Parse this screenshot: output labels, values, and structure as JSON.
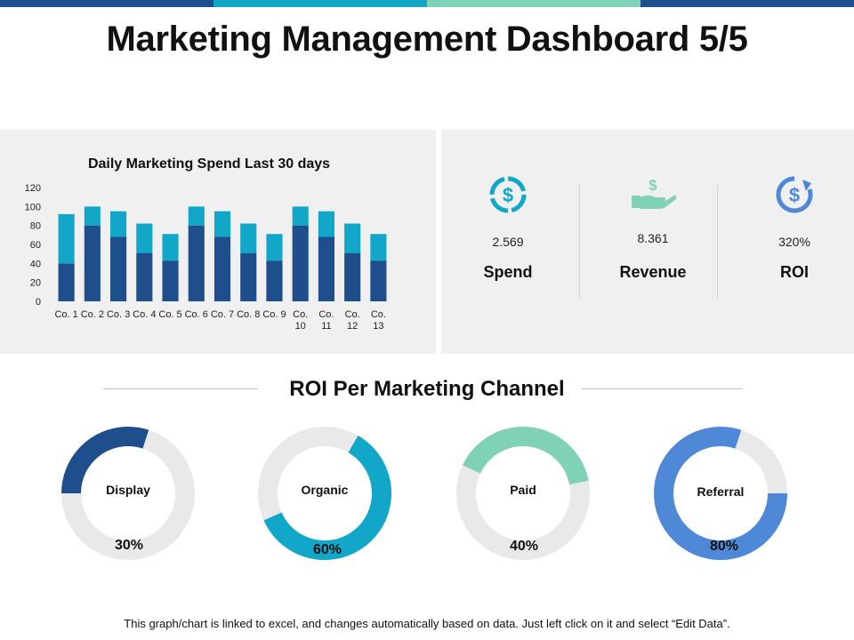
{
  "title": "Marketing Management Dashboard 5/5",
  "colors": {
    "band1": "#1f4e8c",
    "band2": "#12a7c9",
    "band3": "#7fd1b7",
    "band4": "#1f4e8c",
    "bar_bottom": "#1f4e8c",
    "bar_top": "#12a7c9",
    "teal": "#12a7c9",
    "green": "#7fd1b7",
    "blue": "#4f88d6",
    "track": "#e9e9e9"
  },
  "chart_data": {
    "type": "bar",
    "title": "Daily Marketing Spend Last 30 days",
    "categories": [
      "Co. 1",
      "Co. 2",
      "Co. 3",
      "Co. 4",
      "Co. 5",
      "Co. 6",
      "Co. 7",
      "Co. 8",
      "Co. 9",
      "Co. 10",
      "Co. 11",
      "Co. 12",
      "Co. 13"
    ],
    "category_lines": [
      [
        "Co. 1"
      ],
      [
        "Co. 2"
      ],
      [
        "Co. 3"
      ],
      [
        "Co. 4"
      ],
      [
        "Co. 5"
      ],
      [
        "Co. 6"
      ],
      [
        "Co. 7"
      ],
      [
        "Co. 8"
      ],
      [
        "Co. 9"
      ],
      [
        "Co.",
        "10"
      ],
      [
        "Co.",
        "11"
      ],
      [
        "Co.",
        "12"
      ],
      [
        "Co.",
        "13"
      ]
    ],
    "series": [
      {
        "values": [
          40,
          80,
          68,
          51,
          43,
          80,
          68,
          51,
          43,
          80,
          68,
          51,
          43
        ]
      },
      {
        "values": [
          52,
          20,
          27,
          31,
          28,
          20,
          27,
          31,
          28,
          20,
          27,
          31,
          28
        ]
      }
    ],
    "stacked": true,
    "ylim": [
      0,
      120
    ],
    "yticks": [
      0,
      20,
      40,
      60,
      80,
      100,
      120
    ],
    "xlabel": "",
    "ylabel": "",
    "grid": false,
    "legend": "none"
  },
  "kpis": [
    {
      "icon": "dollar-cycle-icon",
      "value": "2.569",
      "label": "Spend"
    },
    {
      "icon": "hand-dollar-icon",
      "value": "8.361",
      "label": "Revenue"
    },
    {
      "icon": "dollar-refresh-icon",
      "value": "320%",
      "label": "ROI"
    }
  ],
  "roi_section": {
    "title": "ROI Per Marketing Channel",
    "channels": [
      {
        "label": "Display",
        "percent": 30,
        "percent_text": "30%",
        "color": "#1f4e8c"
      },
      {
        "label": "Organic",
        "percent": 60,
        "percent_text": "60%",
        "color": "#12a7c9"
      },
      {
        "label": "Paid",
        "percent": 40,
        "percent_text": "40%",
        "color": "#7fd1b7"
      },
      {
        "label": "Referral",
        "percent": 80,
        "percent_text": "80%",
        "color": "#4f88d6"
      }
    ]
  },
  "footer": "This graph/chart is linked to excel, and changes automatically based on data. Just left click on it and select “Edit Data”."
}
